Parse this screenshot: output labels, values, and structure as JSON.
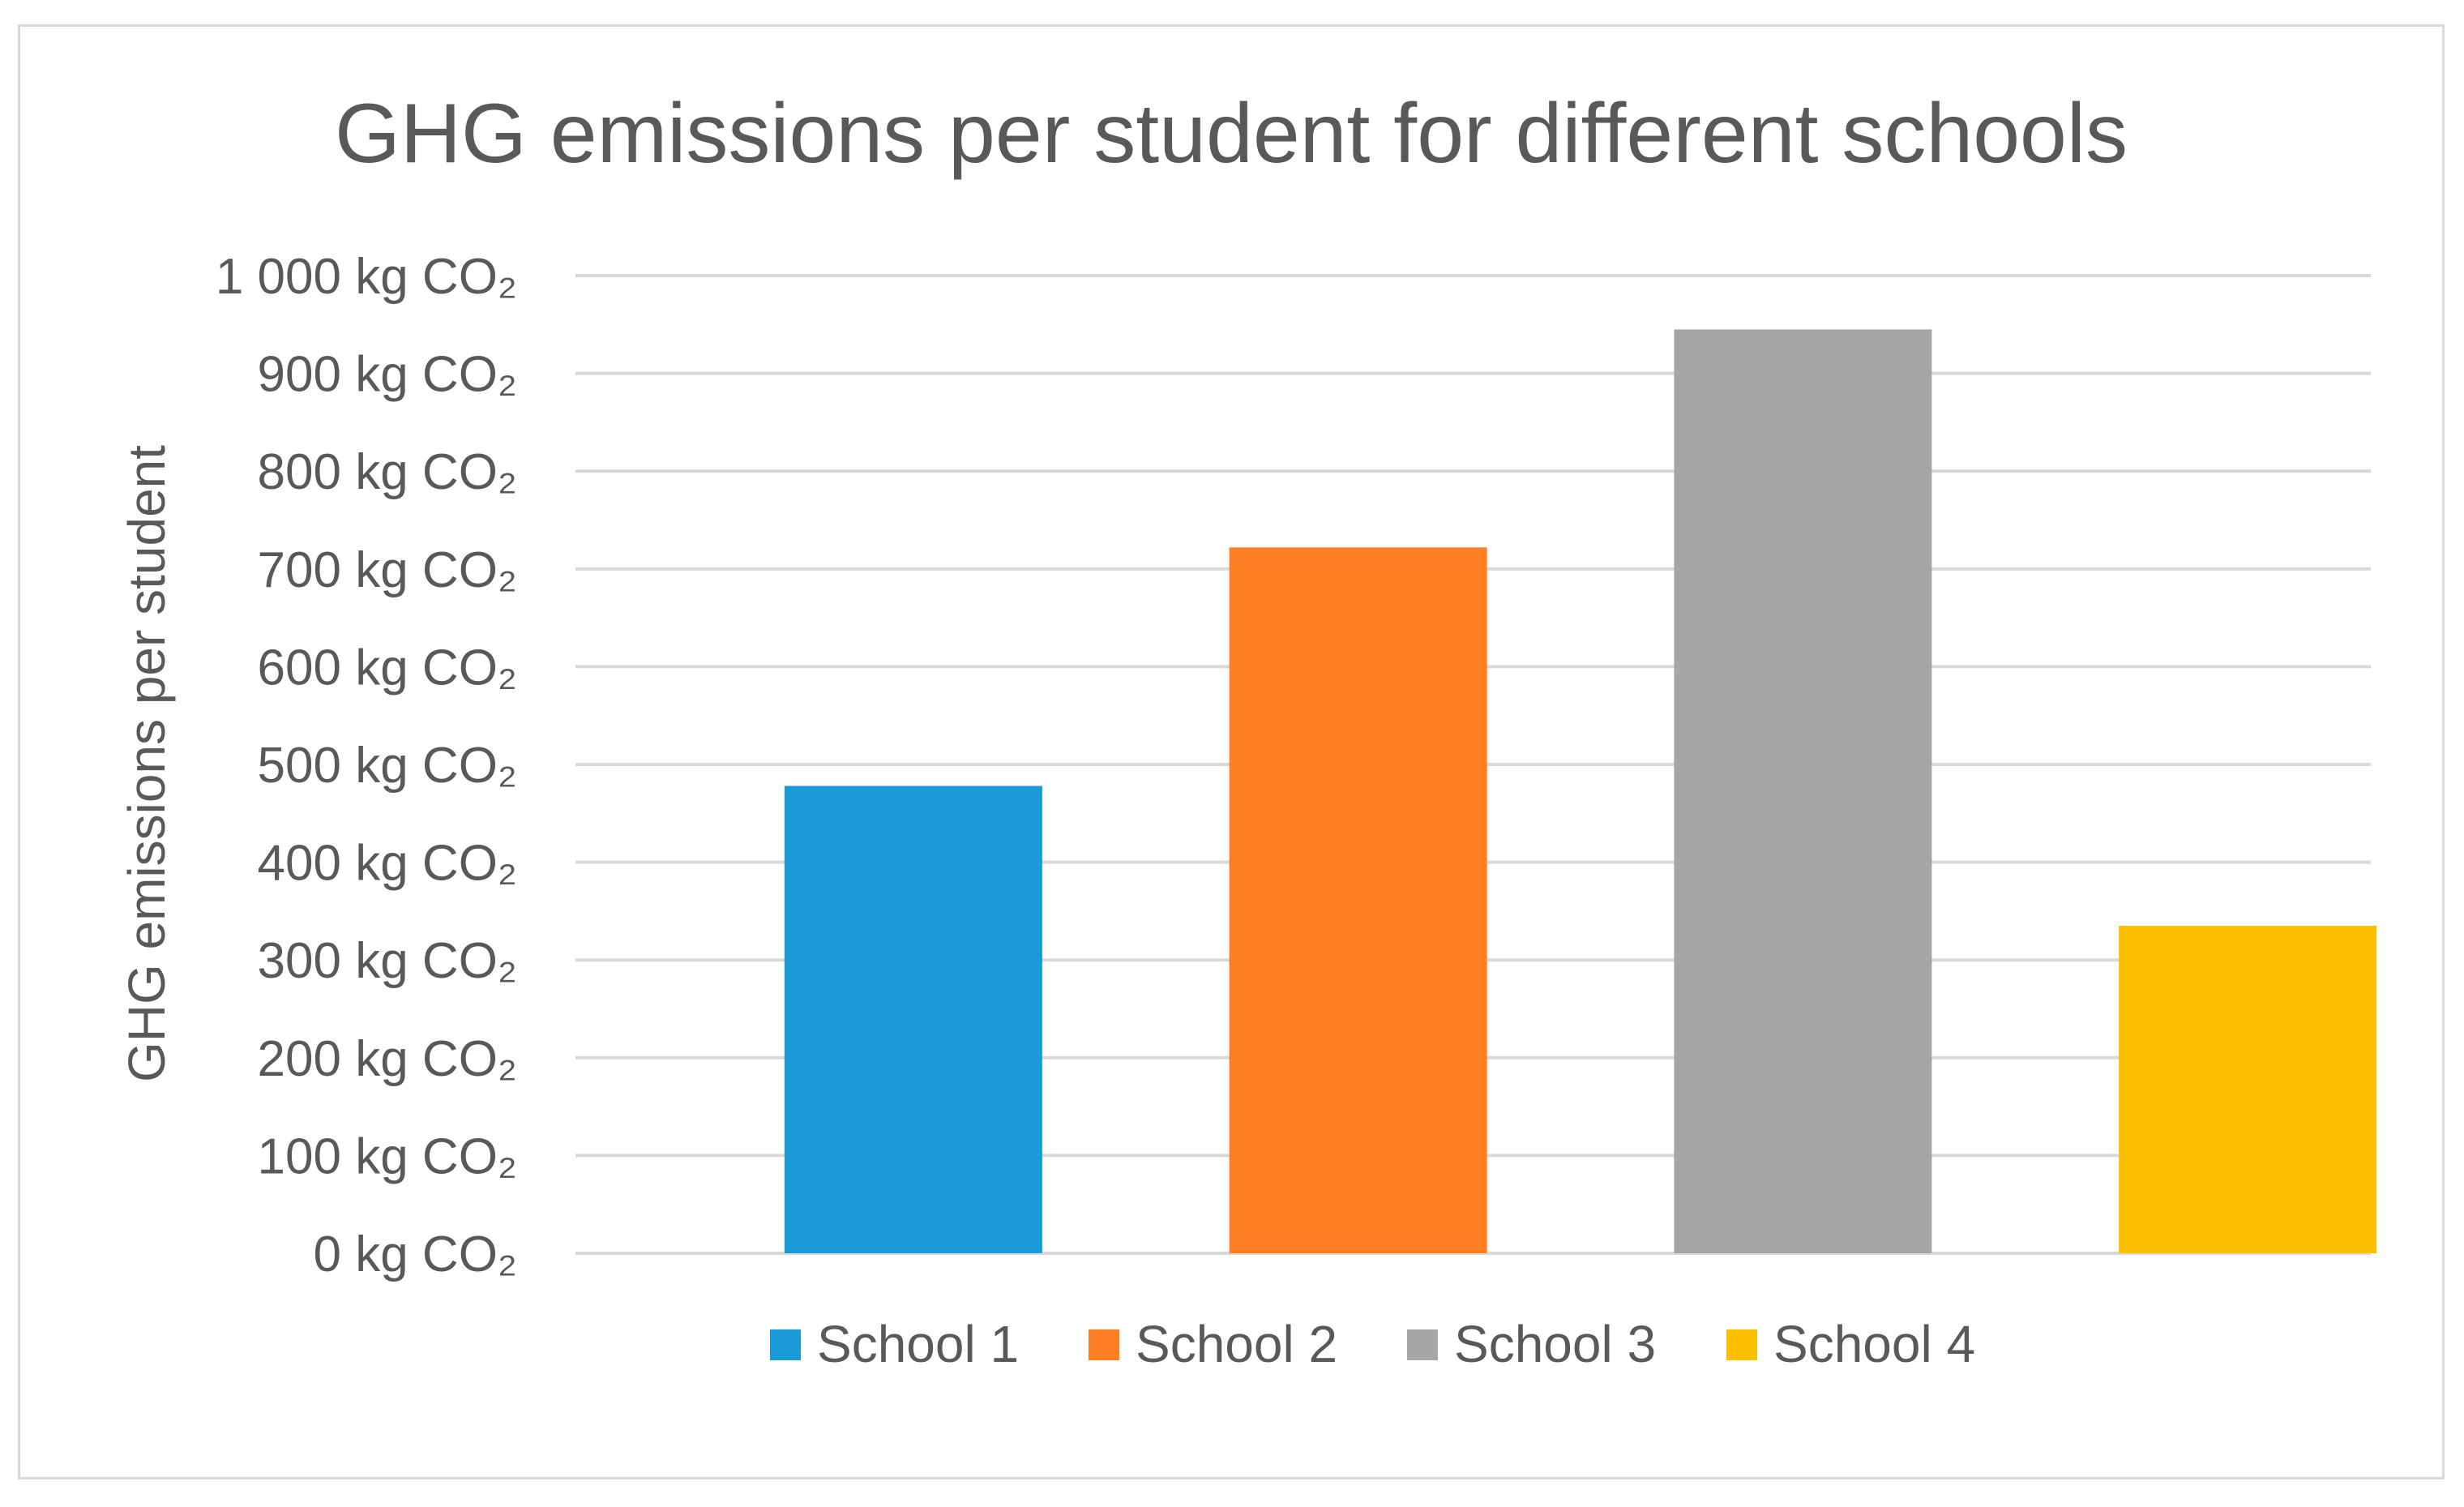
{
  "chart_data": {
    "type": "bar",
    "title": "GHG emissions per student for different schools",
    "xlabel": "",
    "ylabel": "GHG emissions per student",
    "categories": [
      "School 1",
      "School 2",
      "School 3",
      "School 4"
    ],
    "series": [
      {
        "name": "School 1",
        "values": [
          478,
          null,
          null,
          null
        ]
      },
      {
        "name": "School 2",
        "values": [
          null,
          722,
          null,
          null
        ]
      },
      {
        "name": "School 3",
        "values": [
          null,
          null,
          945,
          null
        ]
      },
      {
        "name": "School 4",
        "values": [
          null,
          null,
          null,
          335
        ]
      }
    ],
    "values": [
      478,
      722,
      945,
      335
    ],
    "colors": [
      "#1a9bd7",
      "#fd7e23",
      "#a6a6a6",
      "#fdc000"
    ],
    "ylim": [
      0,
      1000
    ],
    "yticks": [
      0,
      100,
      200,
      300,
      400,
      500,
      600,
      700,
      800,
      900,
      1000
    ],
    "ytick_labels": [
      "0 kg CO₂",
      "100 kg CO₂",
      "200 kg CO₂",
      "300 kg CO₂",
      "400 kg CO₂",
      "500 kg CO₂",
      "600 kg CO₂",
      "700 kg CO₂",
      "800 kg CO₂",
      "900 kg CO₂",
      "1 000 kg CO₂"
    ],
    "grid": true,
    "legend_position": "bottom",
    "legend": [
      "School 1",
      "School 2",
      "School 3",
      "School 4"
    ]
  }
}
